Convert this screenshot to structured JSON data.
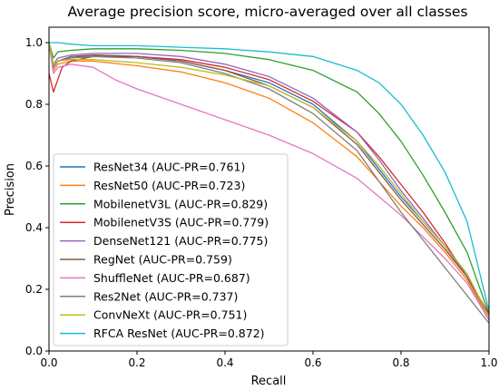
{
  "chart_data": {
    "type": "line",
    "title": "Average precision score, micro-averaged over all classes",
    "xlabel": "Recall",
    "ylabel": "Precision",
    "xlim": [
      0.0,
      1.0
    ],
    "ylim": [
      0.0,
      1.05
    ],
    "xticks": [
      "0.0",
      "0.2",
      "0.4",
      "0.6",
      "0.8",
      "1.0"
    ],
    "yticks": [
      "0.0",
      "0.2",
      "0.4",
      "0.6",
      "0.8",
      "1.0"
    ],
    "grid": false,
    "legend_position": "lower-left",
    "series": [
      {
        "name": "ResNet34 (AUC-PR=0.761)",
        "color": "#1f77b4",
        "x": [
          0.0,
          0.01,
          0.02,
          0.05,
          0.1,
          0.2,
          0.3,
          0.4,
          0.5,
          0.6,
          0.7,
          0.75,
          0.8,
          0.85,
          0.9,
          0.95,
          1.0
        ],
        "y": [
          1.0,
          0.92,
          0.94,
          0.95,
          0.96,
          0.955,
          0.94,
          0.91,
          0.87,
          0.8,
          0.68,
          0.59,
          0.5,
          0.42,
          0.34,
          0.25,
          0.11
        ]
      },
      {
        "name": "ResNet50 (AUC-PR=0.723)",
        "color": "#ff7f0e",
        "x": [
          0.0,
          0.01,
          0.02,
          0.05,
          0.1,
          0.2,
          0.3,
          0.4,
          0.5,
          0.6,
          0.7,
          0.75,
          0.8,
          0.85,
          0.9,
          0.95,
          1.0
        ],
        "y": [
          1.0,
          0.91,
          0.93,
          0.94,
          0.94,
          0.925,
          0.905,
          0.87,
          0.82,
          0.74,
          0.63,
          0.55,
          0.47,
          0.4,
          0.32,
          0.23,
          0.1
        ]
      },
      {
        "name": "MobilenetV3L (AUC-PR=0.829)",
        "color": "#2ca02c",
        "x": [
          0.0,
          0.01,
          0.02,
          0.05,
          0.1,
          0.2,
          0.3,
          0.4,
          0.5,
          0.6,
          0.7,
          0.75,
          0.8,
          0.85,
          0.9,
          0.95,
          1.0
        ],
        "y": [
          1.0,
          0.95,
          0.97,
          0.975,
          0.98,
          0.98,
          0.975,
          0.965,
          0.945,
          0.91,
          0.84,
          0.77,
          0.68,
          0.57,
          0.45,
          0.32,
          0.12
        ]
      },
      {
        "name": "MobilenetV3S (AUC-PR=0.779)",
        "color": "#d62728",
        "x": [
          0.0,
          0.01,
          0.02,
          0.03,
          0.05,
          0.1,
          0.2,
          0.3,
          0.4,
          0.5,
          0.6,
          0.7,
          0.75,
          0.8,
          0.85,
          0.9,
          0.95,
          1.0
        ],
        "y": [
          0.9,
          0.84,
          0.88,
          0.92,
          0.94,
          0.955,
          0.955,
          0.945,
          0.92,
          0.88,
          0.81,
          0.71,
          0.63,
          0.54,
          0.45,
          0.35,
          0.24,
          0.12
        ]
      },
      {
        "name": "DenseNet121 (AUC-PR=0.775)",
        "color": "#9467bd",
        "x": [
          0.0,
          0.01,
          0.02,
          0.05,
          0.1,
          0.2,
          0.3,
          0.4,
          0.5,
          0.6,
          0.7,
          0.75,
          0.8,
          0.85,
          0.9,
          0.95,
          1.0
        ],
        "y": [
          1.0,
          0.93,
          0.95,
          0.96,
          0.965,
          0.965,
          0.955,
          0.93,
          0.89,
          0.82,
          0.71,
          0.62,
          0.52,
          0.43,
          0.34,
          0.24,
          0.11
        ]
      },
      {
        "name": "RegNet (AUC-PR=0.759)",
        "color": "#8c564b",
        "x": [
          0.0,
          0.01,
          0.02,
          0.05,
          0.1,
          0.2,
          0.3,
          0.4,
          0.5,
          0.6,
          0.7,
          0.75,
          0.8,
          0.85,
          0.9,
          0.95,
          1.0
        ],
        "y": [
          1.0,
          0.92,
          0.94,
          0.955,
          0.96,
          0.955,
          0.94,
          0.91,
          0.86,
          0.79,
          0.67,
          0.58,
          0.49,
          0.41,
          0.33,
          0.24,
          0.11
        ]
      },
      {
        "name": "ShuffleNet (AUC-PR=0.687)",
        "color": "#e377c2",
        "x": [
          0.0,
          0.01,
          0.02,
          0.05,
          0.1,
          0.15,
          0.2,
          0.3,
          0.4,
          0.5,
          0.6,
          0.7,
          0.75,
          0.8,
          0.85,
          0.9,
          0.95,
          1.0
        ],
        "y": [
          1.0,
          0.9,
          0.92,
          0.93,
          0.92,
          0.88,
          0.85,
          0.8,
          0.75,
          0.7,
          0.64,
          0.56,
          0.5,
          0.44,
          0.37,
          0.3,
          0.22,
          0.1
        ]
      },
      {
        "name": "Res2Net (AUC-PR=0.737)",
        "color": "#7f7f7f",
        "x": [
          0.0,
          0.01,
          0.02,
          0.05,
          0.1,
          0.2,
          0.3,
          0.4,
          0.5,
          0.6,
          0.7,
          0.75,
          0.8,
          0.85,
          0.9,
          0.95,
          1.0
        ],
        "y": [
          1.0,
          0.92,
          0.94,
          0.95,
          0.955,
          0.95,
          0.935,
          0.9,
          0.85,
          0.77,
          0.65,
          0.55,
          0.45,
          0.36,
          0.27,
          0.18,
          0.09
        ]
      },
      {
        "name": "ConvNeXt (AUC-PR=0.751)",
        "color": "#bcbd22",
        "x": [
          0.0,
          0.01,
          0.02,
          0.05,
          0.1,
          0.2,
          0.3,
          0.4,
          0.5,
          0.6,
          0.7,
          0.75,
          0.8,
          0.85,
          0.9,
          0.95,
          1.0
        ],
        "y": [
          1.0,
          0.93,
          0.94,
          0.945,
          0.945,
          0.935,
          0.92,
          0.895,
          0.86,
          0.79,
          0.68,
          0.6,
          0.51,
          0.42,
          0.34,
          0.25,
          0.11
        ]
      },
      {
        "name": "RFCA ResNet (AUC-PR=0.872)",
        "color": "#17becf",
        "x": [
          0.0,
          0.01,
          0.02,
          0.05,
          0.1,
          0.2,
          0.3,
          0.4,
          0.5,
          0.6,
          0.7,
          0.75,
          0.8,
          0.85,
          0.9,
          0.95,
          1.0
        ],
        "y": [
          1.0,
          1.0,
          1.0,
          0.995,
          0.99,
          0.99,
          0.985,
          0.98,
          0.97,
          0.955,
          0.91,
          0.87,
          0.8,
          0.7,
          0.58,
          0.42,
          0.13
        ]
      }
    ]
  }
}
